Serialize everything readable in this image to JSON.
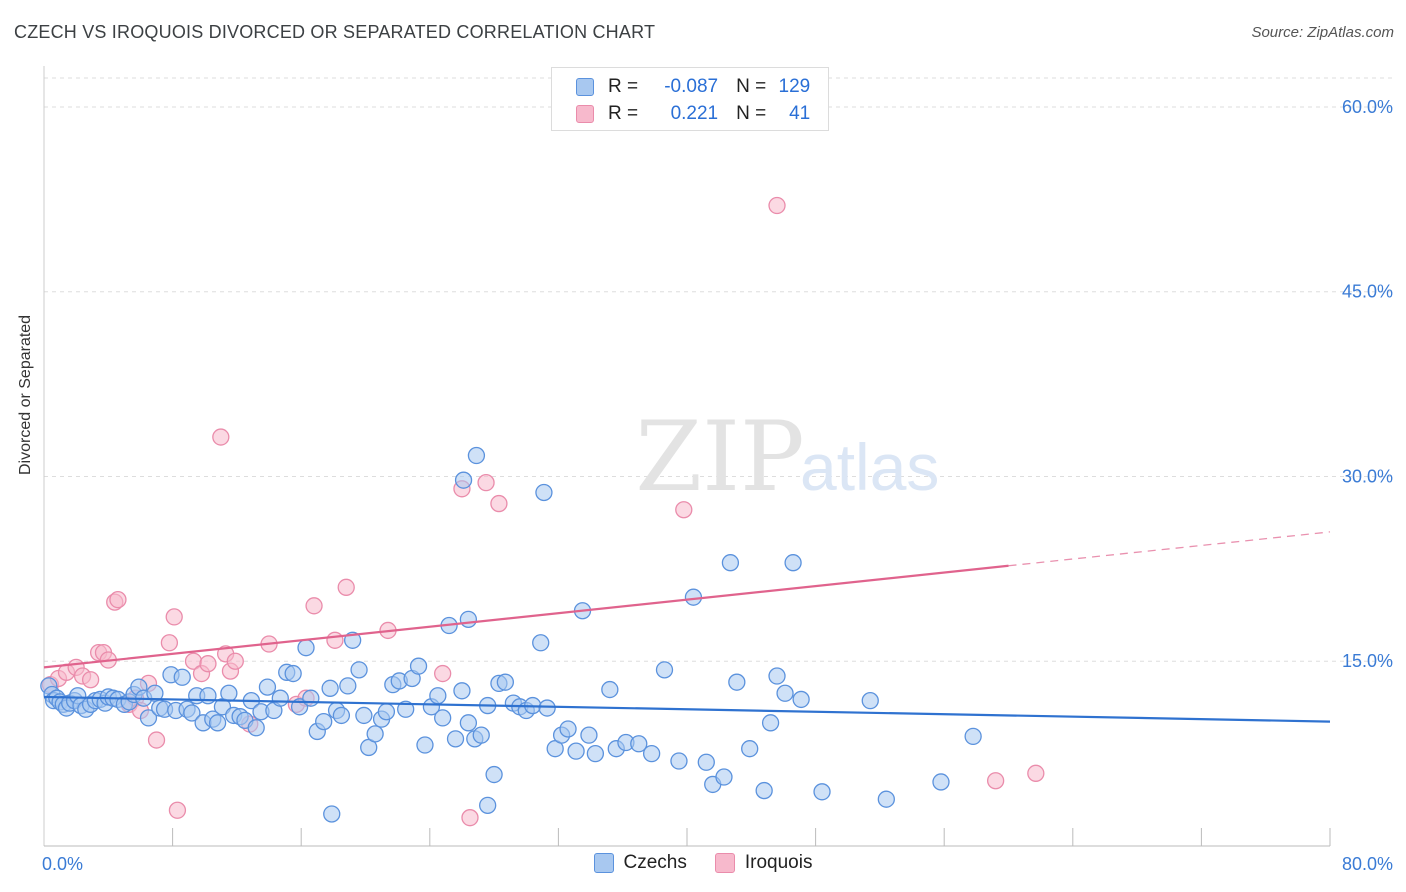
{
  "title": "CZECH VS IROQUOIS DIVORCED OR SEPARATED CORRELATION CHART",
  "source": "Source: ZipAtlas.com",
  "watermark": {
    "zip": "ZIP",
    "atlas": "atlas"
  },
  "legend": {
    "rows": [
      {
        "r_label": "R =",
        "r_value": "-0.087",
        "n_label": "N =",
        "n_value": "129"
      },
      {
        "r_label": "R =",
        "r_value": "0.221",
        "n_label": "N =",
        "n_value": "41"
      }
    ]
  },
  "colors": {
    "czech_fill": "#a8c8f0",
    "czech_stroke": "#5b92dd",
    "czech_line": "#2f72d0",
    "iroquois_fill": "#f7b9cc",
    "iroquois_stroke": "#ea8cab",
    "iroquois_line": "#e0638d",
    "grid": "#dddddd",
    "tick_text": "#3a7bd5"
  },
  "chart_data": {
    "type": "scatter",
    "title": "CZECH VS IROQUOIS DIVORCED OR SEPARATED CORRELATION CHART",
    "xlabel": "",
    "ylabel": "Divorced or Separated",
    "xlim": [
      0,
      80
    ],
    "ylim": [
      0,
      63
    ],
    "x_tick_labels": [
      "0.0%",
      "80.0%"
    ],
    "y_ticks": [
      15,
      30,
      45,
      60
    ],
    "y_tick_labels": [
      "15.0%",
      "30.0%",
      "45.0%",
      "60.0%"
    ],
    "grid": true,
    "legend_position": "top-center",
    "series": [
      {
        "name": "Czechs",
        "r": -0.087,
        "n": 129,
        "trend": {
          "x": [
            0,
            80
          ],
          "y": [
            12.1,
            10.1
          ],
          "dashed_from": null
        },
        "points": [
          [
            0.3,
            13.0
          ],
          [
            0.5,
            12.3
          ],
          [
            0.6,
            11.8
          ],
          [
            0.8,
            12.0
          ],
          [
            1.0,
            11.7
          ],
          [
            1.2,
            11.5
          ],
          [
            1.4,
            11.2
          ],
          [
            1.6,
            11.6
          ],
          [
            1.9,
            11.8
          ],
          [
            2.1,
            12.2
          ],
          [
            2.3,
            11.4
          ],
          [
            2.6,
            11.1
          ],
          [
            2.9,
            11.5
          ],
          [
            3.2,
            11.8
          ],
          [
            3.5,
            11.9
          ],
          [
            3.8,
            11.6
          ],
          [
            4.0,
            12.1
          ],
          [
            4.3,
            12.0
          ],
          [
            4.6,
            11.9
          ],
          [
            5.0,
            11.5
          ],
          [
            5.3,
            11.7
          ],
          [
            5.6,
            12.3
          ],
          [
            5.9,
            12.9
          ],
          [
            6.2,
            12.0
          ],
          [
            6.5,
            10.4
          ],
          [
            6.9,
            12.4
          ],
          [
            7.2,
            11.2
          ],
          [
            7.5,
            11.1
          ],
          [
            7.9,
            13.9
          ],
          [
            8.2,
            11.0
          ],
          [
            8.6,
            13.7
          ],
          [
            8.9,
            11.1
          ],
          [
            9.2,
            10.8
          ],
          [
            9.5,
            12.2
          ],
          [
            9.9,
            10.0
          ],
          [
            10.2,
            12.2
          ],
          [
            10.5,
            10.3
          ],
          [
            10.8,
            10.0
          ],
          [
            11.1,
            11.3
          ],
          [
            11.5,
            12.4
          ],
          [
            11.8,
            10.6
          ],
          [
            12.2,
            10.5
          ],
          [
            12.5,
            10.2
          ],
          [
            12.9,
            11.8
          ],
          [
            13.2,
            9.6
          ],
          [
            13.5,
            10.9
          ],
          [
            13.9,
            12.9
          ],
          [
            14.3,
            11.0
          ],
          [
            14.7,
            12.0
          ],
          [
            15.1,
            14.1
          ],
          [
            15.5,
            14.0
          ],
          [
            15.9,
            11.3
          ],
          [
            16.3,
            16.1
          ],
          [
            16.6,
            12.0
          ],
          [
            17.0,
            9.3
          ],
          [
            17.4,
            10.1
          ],
          [
            17.8,
            12.8
          ],
          [
            18.2,
            11.0
          ],
          [
            18.5,
            10.6
          ],
          [
            18.9,
            13.0
          ],
          [
            19.2,
            16.7
          ],
          [
            19.6,
            14.3
          ],
          [
            19.9,
            10.6
          ],
          [
            20.2,
            8.0
          ],
          [
            20.6,
            9.1
          ],
          [
            21.0,
            10.3
          ],
          [
            21.3,
            10.9
          ],
          [
            21.7,
            13.1
          ],
          [
            22.1,
            13.4
          ],
          [
            22.5,
            11.1
          ],
          [
            22.9,
            13.6
          ],
          [
            23.3,
            14.6
          ],
          [
            23.7,
            8.2
          ],
          [
            24.1,
            11.3
          ],
          [
            24.5,
            12.2
          ],
          [
            24.8,
            10.4
          ],
          [
            25.2,
            17.9
          ],
          [
            25.6,
            8.7
          ],
          [
            26.0,
            12.6
          ],
          [
            26.4,
            10.0
          ],
          [
            26.8,
            8.7
          ],
          [
            27.2,
            9.0
          ],
          [
            27.6,
            11.4
          ],
          [
            28.0,
            5.8
          ],
          [
            28.3,
            13.2
          ],
          [
            28.7,
            13.3
          ],
          [
            29.2,
            11.6
          ],
          [
            29.6,
            11.3
          ],
          [
            30.0,
            11.0
          ],
          [
            30.4,
            11.4
          ],
          [
            30.9,
            16.5
          ],
          [
            31.3,
            11.2
          ],
          [
            31.8,
            7.9
          ],
          [
            32.2,
            9.0
          ],
          [
            32.6,
            9.5
          ],
          [
            33.1,
            7.7
          ],
          [
            33.5,
            19.1
          ],
          [
            33.9,
            9.0
          ],
          [
            34.3,
            7.5
          ],
          [
            35.2,
            12.7
          ],
          [
            35.6,
            7.9
          ],
          [
            36.2,
            8.4
          ],
          [
            37.0,
            8.3
          ],
          [
            37.8,
            7.5
          ],
          [
            38.6,
            14.3
          ],
          [
            39.5,
            6.9
          ],
          [
            40.4,
            20.2
          ],
          [
            41.2,
            6.8
          ],
          [
            41.6,
            5.0
          ],
          [
            42.3,
            5.6
          ],
          [
            42.7,
            23.0
          ],
          [
            43.1,
            13.3
          ],
          [
            43.9,
            7.9
          ],
          [
            44.8,
            4.5
          ],
          [
            45.2,
            10.0
          ],
          [
            45.6,
            13.8
          ],
          [
            46.1,
            12.4
          ],
          [
            46.6,
            23.0
          ],
          [
            47.1,
            11.9
          ],
          [
            48.4,
            4.4
          ],
          [
            51.4,
            11.8
          ],
          [
            52.4,
            3.8
          ],
          [
            55.8,
            5.2
          ],
          [
            57.8,
            8.9
          ],
          [
            26.1,
            29.7
          ],
          [
            26.9,
            31.7
          ],
          [
            31.1,
            28.7
          ],
          [
            26.4,
            18.4
          ],
          [
            17.9,
            2.6
          ],
          [
            27.6,
            3.3
          ]
        ]
      },
      {
        "name": "Iroquois",
        "r": 0.221,
        "n": 41,
        "trend": {
          "x": [
            0,
            80
          ],
          "y": [
            14.5,
            25.5
          ],
          "dashed_from": 60
        },
        "points": [
          [
            0.4,
            13.1
          ],
          [
            0.9,
            13.6
          ],
          [
            1.4,
            14.1
          ],
          [
            2.0,
            14.5
          ],
          [
            2.4,
            13.8
          ],
          [
            2.9,
            13.5
          ],
          [
            3.4,
            15.7
          ],
          [
            3.7,
            15.7
          ],
          [
            4.0,
            15.1
          ],
          [
            4.4,
            19.8
          ],
          [
            4.6,
            20.0
          ],
          [
            5.3,
            11.5
          ],
          [
            5.7,
            12.0
          ],
          [
            6.0,
            11.0
          ],
          [
            6.5,
            13.2
          ],
          [
            7.0,
            8.6
          ],
          [
            7.8,
            16.5
          ],
          [
            8.1,
            18.6
          ],
          [
            8.3,
            2.9
          ],
          [
            9.3,
            15.0
          ],
          [
            9.8,
            14.0
          ],
          [
            10.2,
            14.8
          ],
          [
            11.0,
            33.2
          ],
          [
            11.3,
            15.6
          ],
          [
            11.6,
            14.2
          ],
          [
            11.9,
            15.0
          ],
          [
            12.8,
            9.9
          ],
          [
            14.0,
            16.4
          ],
          [
            15.7,
            11.5
          ],
          [
            16.3,
            12.0
          ],
          [
            16.8,
            19.5
          ],
          [
            18.1,
            16.7
          ],
          [
            18.8,
            21.0
          ],
          [
            21.4,
            17.5
          ],
          [
            24.8,
            14.0
          ],
          [
            26.0,
            29.0
          ],
          [
            26.5,
            2.3
          ],
          [
            27.5,
            29.5
          ],
          [
            28.3,
            27.8
          ],
          [
            39.8,
            27.3
          ],
          [
            45.6,
            52.0
          ],
          [
            59.2,
            5.3
          ],
          [
            61.7,
            5.9
          ]
        ]
      }
    ]
  }
}
